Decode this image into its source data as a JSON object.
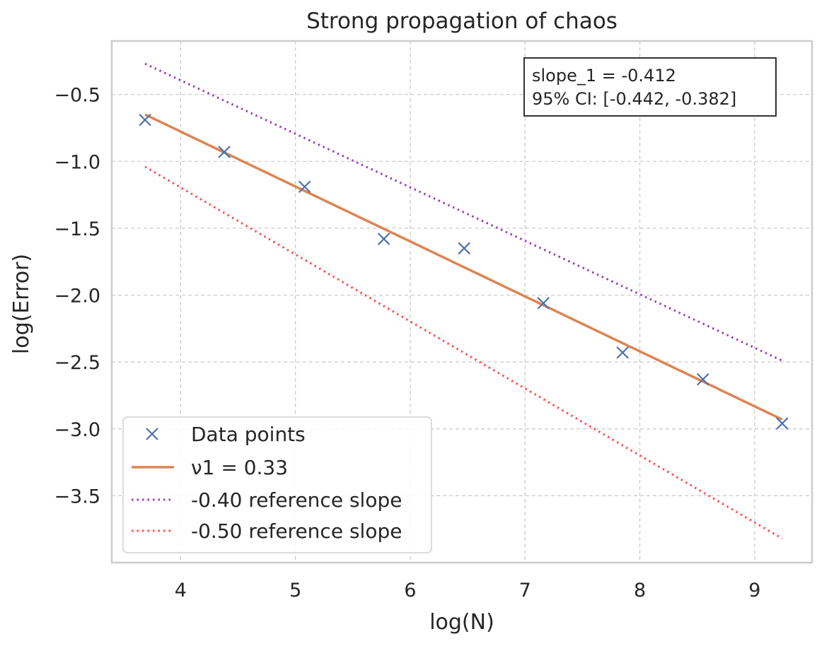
{
  "chart_data": {
    "type": "line",
    "title": "Strong propagation of chaos",
    "xlabel": "log(N)",
    "ylabel": "log(Error)",
    "xlim": [
      3.4,
      9.5
    ],
    "ylim": [
      -4.0,
      -0.1
    ],
    "xticks": [
      4,
      5,
      6,
      7,
      8,
      9
    ],
    "yticks": [
      -0.5,
      -1.0,
      -1.5,
      -2.0,
      -2.5,
      -3.0,
      -3.5
    ],
    "xtick_labels": [
      "4",
      "5",
      "6",
      "7",
      "8",
      "9"
    ],
    "ytick_labels": [
      "−0.5",
      "−1.0",
      "−1.5",
      "−2.0",
      "−2.5",
      "−3.0",
      "−3.5"
    ],
    "grid": true,
    "legend_position": "lower-left",
    "series": [
      {
        "name": "Data points",
        "kind": "scatter",
        "marker": "x",
        "color": "#4c72b0",
        "x": [
          3.69,
          4.38,
          5.08,
          5.77,
          6.47,
          7.16,
          7.85,
          8.55,
          9.24
        ],
        "y": [
          -0.69,
          -0.93,
          -1.19,
          -1.58,
          -1.65,
          -2.06,
          -2.43,
          -2.63,
          -2.96
        ]
      },
      {
        "name": "ν1 = 0.33",
        "kind": "line",
        "style": "solid",
        "color": "#dd8452",
        "x": [
          3.69,
          9.24
        ],
        "y": [
          -0.65,
          -2.93
        ]
      },
      {
        "name": "-0.40 reference slope",
        "kind": "line",
        "style": "dotted",
        "color": "#9b3fb5",
        "x": [
          3.69,
          9.24
        ],
        "y": [
          -0.27,
          -2.49
        ]
      },
      {
        "name": "-0.50 reference slope",
        "kind": "line",
        "style": "dotted",
        "color": "#ff4b4b",
        "x": [
          3.69,
          9.24
        ],
        "y": [
          -1.04,
          -3.82
        ]
      }
    ],
    "annotation": {
      "lines": [
        "slope_1 = -0.412",
        "95% CI: [-0.442, -0.382]"
      ],
      "position": "top-right"
    }
  }
}
